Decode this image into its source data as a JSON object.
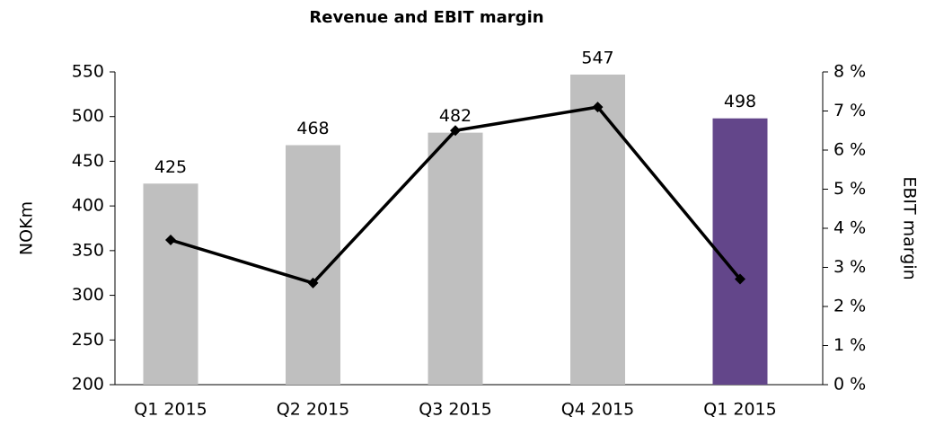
{
  "chart_data": {
    "type": "bar-line",
    "title": "Revenue and EBIT margin",
    "ylabel": "NOKm",
    "y2label": "EBIT margin",
    "categories": [
      "Q1 2015",
      "Q2 2015",
      "Q3 2015",
      "Q4 2015",
      "Q1 2015"
    ],
    "series": [
      {
        "name": "Revenue",
        "type": "bar",
        "colors": [
          "#bfbfbf",
          "#bfbfbf",
          "#bfbfbf",
          "#bfbfbf",
          "#63468a"
        ],
        "values": [
          425,
          468,
          482,
          547,
          498
        ]
      },
      {
        "name": "EBIT margin",
        "type": "line",
        "axis": "y2",
        "color": "#000000",
        "values": [
          3.7,
          2.6,
          6.5,
          7.1,
          2.7
        ]
      }
    ],
    "ylim": [
      200,
      550
    ],
    "yticks": [
      200,
      250,
      300,
      350,
      400,
      450,
      500,
      550
    ],
    "y2lim": [
      0,
      8
    ],
    "y2ticks": [
      {
        "value": 0,
        "label": "0 %"
      },
      {
        "value": 1,
        "label": "1 %"
      },
      {
        "value": 2,
        "label": "2 %"
      },
      {
        "value": 3,
        "label": "3 %"
      },
      {
        "value": 4,
        "label": "4 %"
      },
      {
        "value": 5,
        "label": "5 %"
      },
      {
        "value": 6,
        "label": "6 %"
      },
      {
        "value": 7,
        "label": "7 %"
      },
      {
        "value": 8,
        "label": "8 %"
      }
    ]
  }
}
